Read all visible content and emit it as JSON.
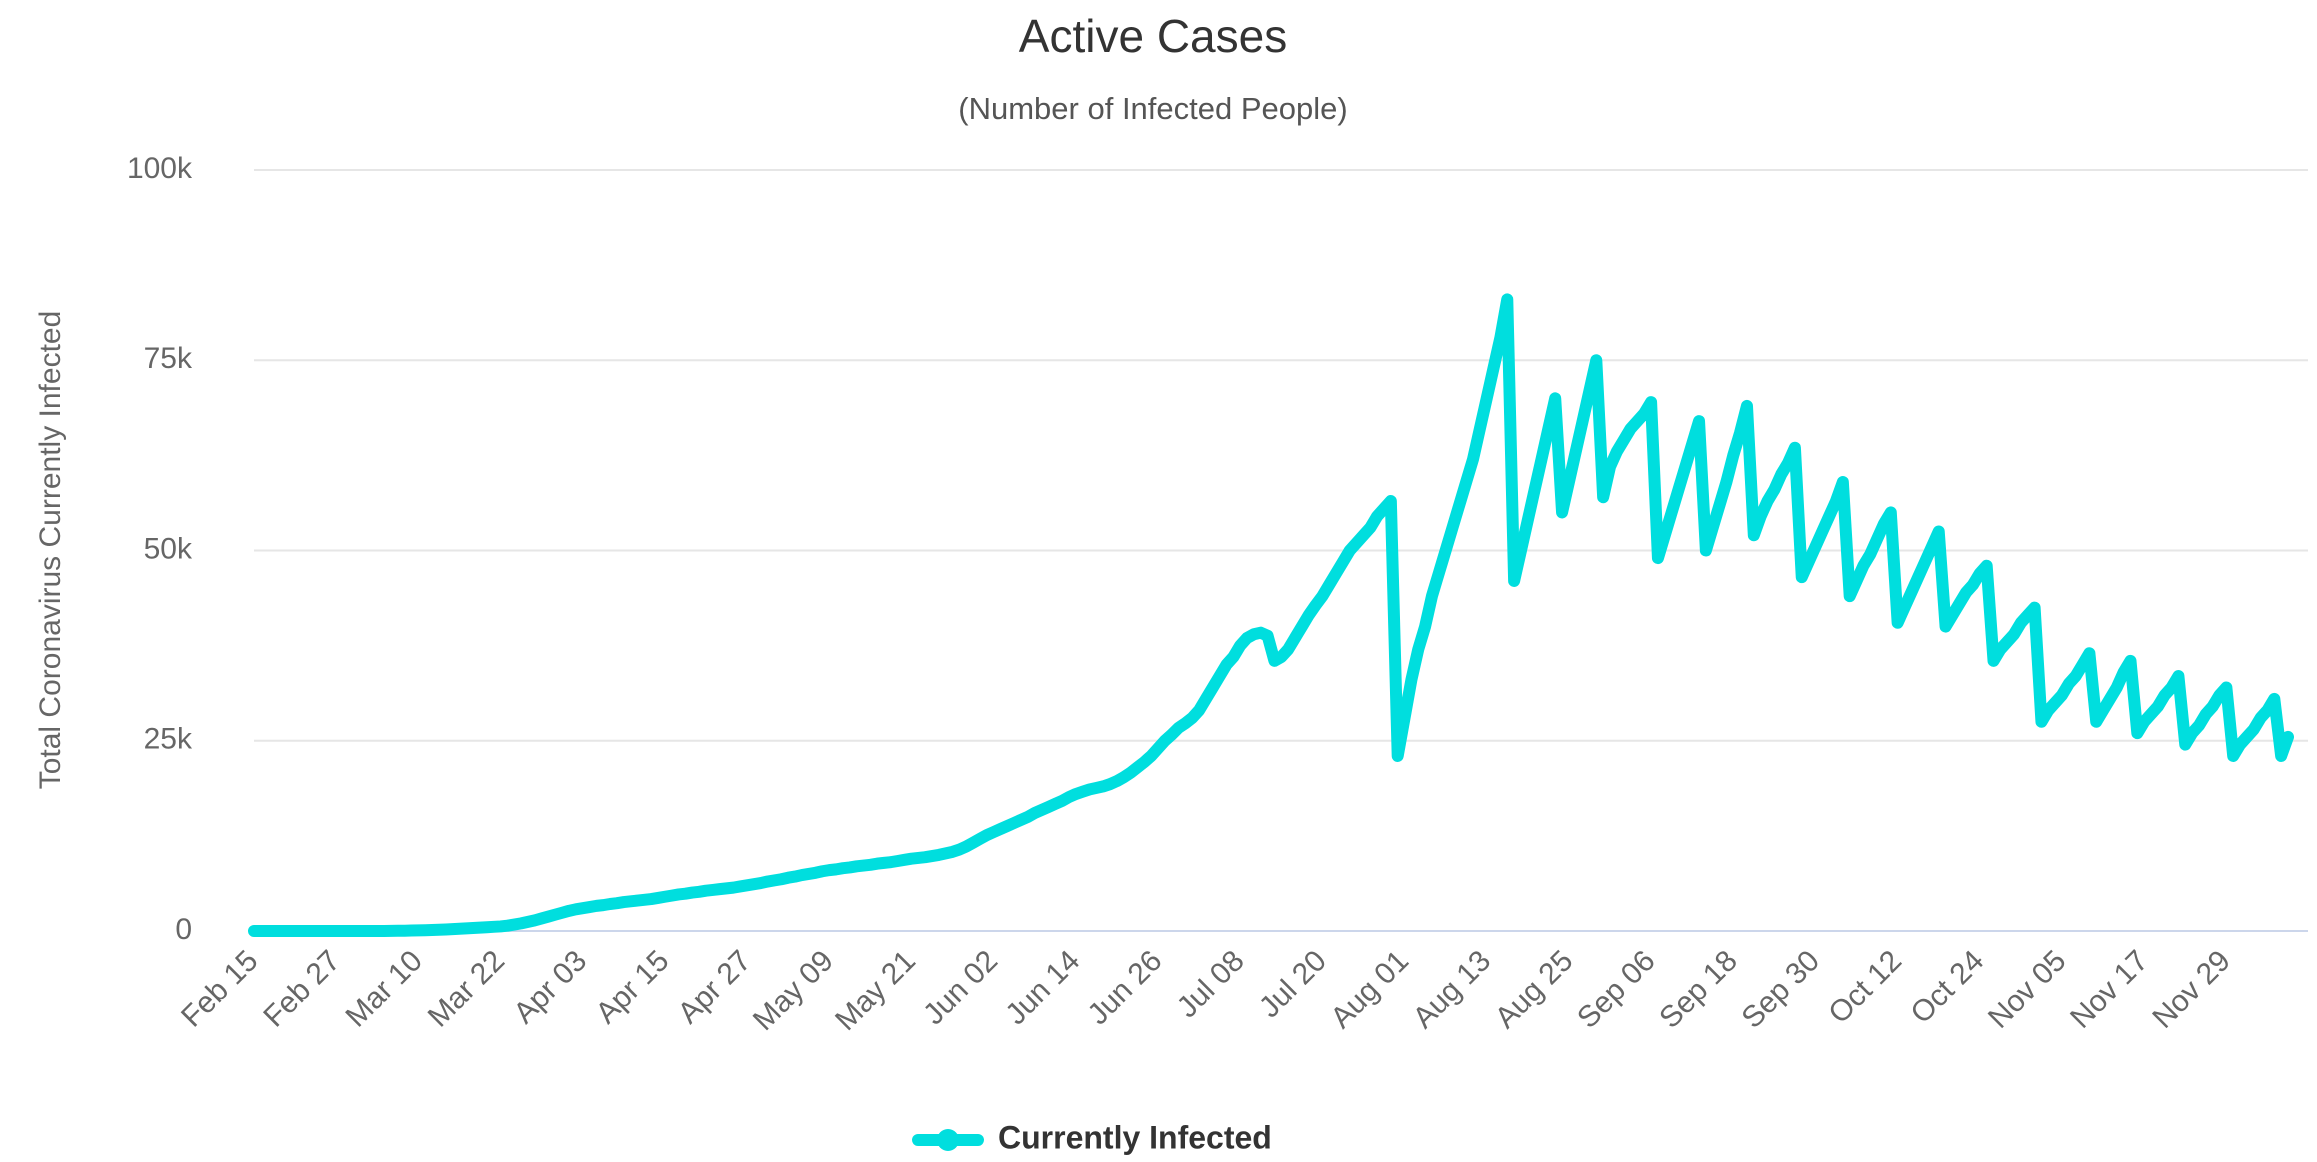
{
  "chart_data": {
    "type": "line",
    "title": "Active Cases",
    "subtitle": "(Number of Infected People)",
    "y_label": "Total Coronavirus Currently Infected",
    "categories": [
      "Feb 15",
      null,
      null,
      null,
      null,
      null,
      null,
      null,
      null,
      null,
      null,
      null,
      "Feb 27",
      null,
      null,
      null,
      null,
      null,
      null,
      null,
      null,
      null,
      null,
      null,
      "Mar 10",
      null,
      null,
      null,
      null,
      null,
      null,
      null,
      null,
      null,
      null,
      null,
      "Mar 22",
      null,
      null,
      null,
      null,
      null,
      null,
      null,
      null,
      null,
      null,
      null,
      "Apr 03",
      null,
      null,
      null,
      null,
      null,
      null,
      null,
      null,
      null,
      null,
      null,
      "Apr 15",
      null,
      null,
      null,
      null,
      null,
      null,
      null,
      null,
      null,
      null,
      null,
      "Apr 27",
      null,
      null,
      null,
      null,
      null,
      null,
      null,
      null,
      null,
      null,
      null,
      "May 09",
      null,
      null,
      null,
      null,
      null,
      null,
      null,
      null,
      null,
      null,
      null,
      "May 21",
      null,
      null,
      null,
      null,
      null,
      null,
      null,
      null,
      null,
      null,
      null,
      "Jun 02",
      null,
      null,
      null,
      null,
      null,
      null,
      null,
      null,
      null,
      null,
      null,
      "Jun 14",
      null,
      null,
      null,
      null,
      null,
      null,
      null,
      null,
      null,
      null,
      null,
      "Jun 26",
      null,
      null,
      null,
      null,
      null,
      null,
      null,
      null,
      null,
      null,
      null,
      "Jul 08",
      null,
      null,
      null,
      null,
      null,
      null,
      null,
      null,
      null,
      null,
      null,
      "Jul 20",
      null,
      null,
      null,
      null,
      null,
      null,
      null,
      null,
      null,
      null,
      null,
      "Aug 01",
      null,
      null,
      null,
      null,
      null,
      null,
      null,
      null,
      null,
      null,
      null,
      "Aug 13",
      null,
      null,
      null,
      null,
      null,
      null,
      null,
      null,
      null,
      null,
      null,
      "Aug 25",
      null,
      null,
      null,
      null,
      null,
      null,
      null,
      null,
      null,
      null,
      null,
      "Sep 06",
      null,
      null,
      null,
      null,
      null,
      null,
      null,
      null,
      null,
      null,
      null,
      "Sep 18",
      null,
      null,
      null,
      null,
      null,
      null,
      null,
      null,
      null,
      null,
      null,
      "Sep 30",
      null,
      null,
      null,
      null,
      null,
      null,
      null,
      null,
      null,
      null,
      null,
      "Oct 12",
      null,
      null,
      null,
      null,
      null,
      null,
      null,
      null,
      null,
      null,
      null,
      "Oct 24",
      null,
      null,
      null,
      null,
      null,
      null,
      null,
      null,
      null,
      null,
      null,
      "Nov 05",
      null,
      null,
      null,
      null,
      null,
      null,
      null,
      null,
      null,
      null,
      null,
      "Nov 17",
      null,
      null,
      null,
      null,
      null,
      null,
      null,
      null,
      null,
      null,
      null,
      "Nov 29",
      null,
      null,
      null,
      null,
      null,
      null,
      null,
      null,
      null
    ],
    "series": [
      {
        "name": "Currently Infected",
        "color": "#00dede",
        "values": [
          0,
          0,
          0,
          0,
          0,
          0,
          0,
          0,
          0,
          0,
          0,
          0,
          0,
          0,
          0,
          0,
          0,
          0,
          0,
          0,
          20,
          30,
          40,
          60,
          80,
          100,
          130,
          160,
          200,
          250,
          300,
          350,
          400,
          450,
          500,
          550,
          600,
          700,
          850,
          1000,
          1200,
          1400,
          1650,
          1900,
          2150,
          2400,
          2650,
          2850,
          3000,
          3150,
          3300,
          3400,
          3550,
          3650,
          3800,
          3900,
          4000,
          4100,
          4200,
          4350,
          4500,
          4650,
          4800,
          4900,
          5050,
          5150,
          5300,
          5400,
          5500,
          5600,
          5700,
          5850,
          6000,
          6150,
          6300,
          6500,
          6650,
          6800,
          7000,
          7150,
          7350,
          7500,
          7650,
          7850,
          8000,
          8100,
          8250,
          8350,
          8500,
          8600,
          8700,
          8850,
          8950,
          9050,
          9200,
          9350,
          9500,
          9600,
          9700,
          9850,
          10000,
          10200,
          10400,
          10700,
          11100,
          11600,
          12100,
          12600,
          13000,
          13400,
          13800,
          14200,
          14600,
          15000,
          15500,
          15900,
          16300,
          16700,
          17100,
          17600,
          18000,
          18300,
          18600,
          18800,
          19000,
          19300,
          19700,
          20200,
          20800,
          21500,
          22200,
          23000,
          24000,
          25000,
          25800,
          26700,
          27300,
          28000,
          29000,
          30500,
          32000,
          33500,
          35000,
          36000,
          37500,
          38500,
          39000,
          39200,
          38800,
          35500,
          36000,
          37000,
          38500,
          40000,
          41500,
          42800,
          44000,
          45500,
          47000,
          48500,
          50000,
          51000,
          52000,
          53000,
          54500,
          55500,
          56500,
          23000,
          28000,
          33000,
          37000,
          40000,
          44000,
          47000,
          50000,
          53000,
          56000,
          59000,
          62000,
          66000,
          70000,
          74000,
          78000,
          83000,
          46000,
          50000,
          54000,
          58000,
          62000,
          66000,
          70000,
          55000,
          59000,
          63000,
          67000,
          71000,
          75000,
          57000,
          61000,
          63000,
          64500,
          66000,
          67000,
          68000,
          69500,
          49000,
          52000,
          55000,
          58000,
          61000,
          64000,
          67000,
          50000,
          53000,
          56000,
          59000,
          62500,
          65500,
          69000,
          52000,
          54500,
          56500,
          58000,
          60000,
          61500,
          63500,
          46500,
          48500,
          50500,
          52500,
          54500,
          56500,
          59000,
          44000,
          46000,
          48000,
          49500,
          51500,
          53500,
          55000,
          40500,
          42500,
          44500,
          46500,
          48500,
          50500,
          52500,
          40000,
          41500,
          43000,
          44500,
          45500,
          47000,
          48000,
          35500,
          37000,
          38000,
          39000,
          40500,
          41500,
          42500,
          27500,
          29000,
          30000,
          31000,
          32500,
          33500,
          35000,
          36500,
          27500,
          29000,
          30500,
          32000,
          34000,
          35500,
          26000,
          27500,
          28500,
          29500,
          31000,
          32000,
          33500,
          24500,
          26000,
          27000,
          28500,
          29500,
          31000,
          32000,
          23000,
          24500,
          25500,
          26500,
          28000,
          29000,
          30500,
          23000,
          25500
        ]
      }
    ],
    "ylim": [
      0,
      100000
    ],
    "yticks": [
      0,
      {
        "value": 25000,
        "label": "25k"
      },
      {
        "value": 50000,
        "label": "50k"
      },
      {
        "value": 75000,
        "label": "75k"
      },
      {
        "value": 100000,
        "label": "100k"
      }
    ],
    "grid": true,
    "legend": "bottom"
  }
}
